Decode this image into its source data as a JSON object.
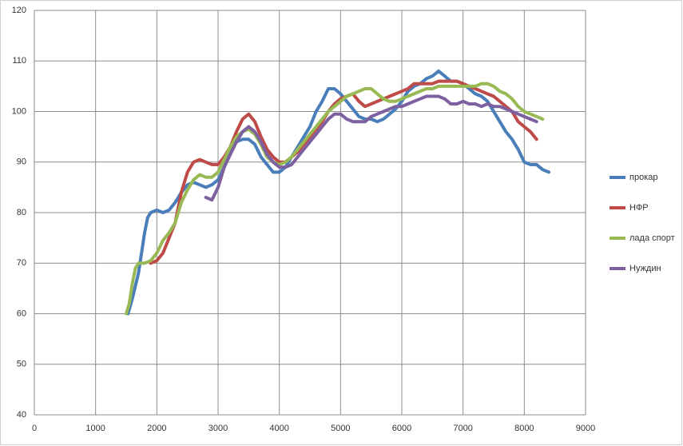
{
  "chart_data": {
    "type": "line",
    "xlim": [
      0,
      9000
    ],
    "xticks": [
      0,
      1000,
      2000,
      3000,
      4000,
      5000,
      6000,
      7000,
      8000,
      9000
    ],
    "ylim": [
      40,
      120
    ],
    "yticks": [
      40,
      50,
      60,
      70,
      80,
      90,
      100,
      110,
      120
    ],
    "grid": true,
    "legend": "right",
    "series": [
      {
        "name": "прокар",
        "color": "#4a7ebb",
        "x": [
          1530,
          1600,
          1700,
          1750,
          1800,
          1850,
          1900,
          2000,
          2100,
          2200,
          2300,
          2400,
          2500,
          2600,
          2700,
          2800,
          2900,
          3000,
          3100,
          3200,
          3300,
          3400,
          3500,
          3600,
          3700,
          3800,
          3900,
          4000,
          4100,
          4200,
          4300,
          4400,
          4500,
          4600,
          4700,
          4800,
          4900,
          5000,
          5100,
          5200,
          5300,
          5400,
          5500,
          5600,
          5700,
          5800,
          5900,
          6000,
          6100,
          6200,
          6300,
          6400,
          6500,
          6600,
          6700,
          6800,
          6900,
          7000,
          7100,
          7200,
          7300,
          7400,
          7500,
          7600,
          7700,
          7800,
          7900,
          8000,
          8100,
          8200,
          8300,
          8400
        ],
        "values": [
          60,
          63,
          68,
          72,
          76,
          79,
          80,
          80.5,
          80,
          80.5,
          82,
          84,
          85.5,
          86,
          85.5,
          85,
          85.5,
          86.5,
          89,
          92,
          94,
          94.5,
          94.5,
          93.5,
          91,
          89.5,
          88,
          88,
          89,
          91,
          93,
          95,
          97,
          100,
          102,
          104.5,
          104.5,
          103.5,
          102,
          100.5,
          99,
          98.5,
          98.5,
          98,
          98.5,
          99.5,
          100.5,
          102,
          104,
          105,
          105.5,
          106.5,
          107,
          108,
          107,
          106,
          106,
          105.5,
          104.5,
          103.5,
          103,
          102,
          100,
          98,
          96,
          94.5,
          92.5,
          90,
          89.5,
          89.5,
          88.5,
          88
        ]
      },
      {
        "name": "НФР",
        "color": "#be4b48",
        "x": [
          1900,
          2000,
          2100,
          2200,
          2300,
          2400,
          2500,
          2600,
          2700,
          2800,
          2900,
          3000,
          3100,
          3200,
          3300,
          3400,
          3500,
          3600,
          3700,
          3800,
          3900,
          4000,
          4100,
          4200,
          4300,
          4400,
          4500,
          4600,
          4700,
          4800,
          4900,
          5000,
          5100,
          5200,
          5300,
          5400,
          5500,
          5600,
          5700,
          5800,
          5900,
          6000,
          6100,
          6200,
          6300,
          6400,
          6500,
          6600,
          6700,
          6800,
          6900,
          7000,
          7100,
          7200,
          7300,
          7400,
          7500,
          7600,
          7700,
          7800,
          7900,
          8000,
          8100,
          8200
        ],
        "values": [
          70,
          70.5,
          72,
          75,
          78,
          84,
          88,
          90,
          90.5,
          90,
          89.5,
          89.5,
          91,
          93,
          96,
          98.5,
          99.5,
          98,
          95,
          92.5,
          91,
          90,
          90,
          91,
          92,
          93.5,
          95,
          96.5,
          98,
          100,
          101.5,
          102.5,
          103,
          103.5,
          102,
          101,
          101.5,
          102,
          102.5,
          103,
          103.5,
          104,
          104.5,
          105.5,
          105.5,
          105.5,
          105.5,
          106,
          106,
          106,
          106,
          105.5,
          105,
          104.5,
          104,
          103.5,
          103,
          102,
          101,
          100,
          98,
          97,
          96,
          94.5
        ]
      },
      {
        "name": "лада спорт",
        "color": "#98b954",
        "x": [
          1500,
          1550,
          1600,
          1650,
          1700,
          1800,
          1900,
          2000,
          2100,
          2200,
          2300,
          2400,
          2500,
          2600,
          2700,
          2800,
          2900,
          3000,
          3100,
          3200,
          3300,
          3400,
          3500,
          3600,
          3700,
          3800,
          3900,
          4000,
          4100,
          4200,
          4300,
          4400,
          4500,
          4600,
          4700,
          4800,
          4900,
          5000,
          5100,
          5200,
          5300,
          5400,
          5500,
          5600,
          5700,
          5800,
          5900,
          6000,
          6100,
          6200,
          6300,
          6400,
          6500,
          6600,
          6700,
          6800,
          6900,
          7000,
          7100,
          7200,
          7300,
          7400,
          7500,
          7600,
          7700,
          7800,
          7900,
          8000,
          8100,
          8200,
          8300
        ],
        "values": [
          60,
          62,
          66,
          69,
          70,
          70,
          70.5,
          72,
          74.5,
          76,
          78,
          82,
          84.5,
          86.5,
          87.5,
          87,
          87,
          88,
          90.5,
          93,
          95,
          96,
          96.5,
          95.5,
          93.5,
          91,
          90,
          89.5,
          90,
          91,
          92.5,
          94,
          95.5,
          97,
          98.5,
          100,
          101,
          102,
          103,
          103.5,
          104,
          104.5,
          104.5,
          103.5,
          102.5,
          102,
          102,
          102.5,
          103,
          103.5,
          104,
          104.5,
          104.5,
          105,
          105,
          105,
          105,
          105,
          105,
          105,
          105.5,
          105.5,
          105,
          104,
          103.5,
          102.5,
          101,
          100,
          99.5,
          99,
          98.5
        ]
      },
      {
        "name": "Нуждин",
        "color": "#7d60a0",
        "x": [
          2800,
          2900,
          3000,
          3100,
          3200,
          3300,
          3400,
          3500,
          3600,
          3700,
          3800,
          3900,
          4000,
          4100,
          4200,
          4300,
          4400,
          4500,
          4600,
          4700,
          4800,
          4900,
          5000,
          5100,
          5200,
          5300,
          5400,
          5500,
          5600,
          5700,
          5800,
          5900,
          6000,
          6100,
          6200,
          6300,
          6400,
          6500,
          6600,
          6700,
          6800,
          6900,
          7000,
          7100,
          7200,
          7300,
          7400,
          7500,
          7600,
          7700,
          7800,
          7900,
          8000,
          8100,
          8200
        ],
        "values": [
          83,
          82.5,
          85,
          89,
          91.5,
          94,
          96,
          97,
          96,
          94,
          91.5,
          90,
          89,
          89,
          89.5,
          91,
          92.5,
          94,
          95.5,
          97,
          98.5,
          99.5,
          99.5,
          98.5,
          98,
          98,
          98,
          99,
          99.5,
          100,
          100.5,
          101,
          101,
          101.5,
          102,
          102.5,
          103,
          103,
          103,
          102.5,
          101.5,
          101.5,
          102,
          101.5,
          101.5,
          101,
          101.5,
          101,
          101,
          100.5,
          100,
          99.5,
          99,
          98.5,
          98
        ]
      }
    ]
  }
}
